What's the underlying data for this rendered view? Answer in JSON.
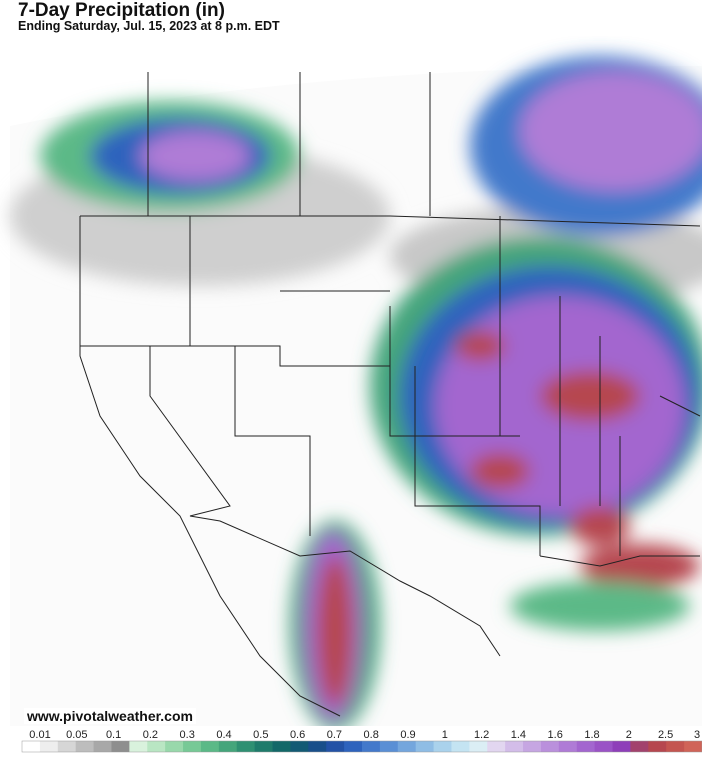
{
  "header": {
    "title": "7-Day Precipitation (in)",
    "subtitle": "Ending Saturday, Jul. 15, 2023 at 8 p.m. EDT"
  },
  "watermark": "www.pivotalweather.com",
  "legend": {
    "labels": [
      "0.01",
      "0.05",
      "0.1",
      "0.2",
      "0.3",
      "0.4",
      "0.5",
      "0.6",
      "0.7",
      "0.8",
      "0.9",
      "1",
      "1.2",
      "1.4",
      "1.6",
      "1.8",
      "2",
      "2.5",
      "3"
    ],
    "colors": [
      "#ffffff",
      "#eeeeee",
      "#d6d6d6",
      "#bdbdbd",
      "#a8a8a8",
      "#8e8e8e",
      "#d9f2dd",
      "#b9e6c3",
      "#98d8ab",
      "#77c996",
      "#5bb987",
      "#45a57b",
      "#2f9072",
      "#1f7b6b",
      "#136868",
      "#135a74",
      "#194f8a",
      "#2352a6",
      "#2e63bd",
      "#4379cb",
      "#5a8fd5",
      "#74a6dd",
      "#8fbde5",
      "#aad2ec",
      "#c4e4f2",
      "#dbeef5",
      "#e2d6f0",
      "#d3bde9",
      "#c6a6e2",
      "#ba90dc",
      "#af7bd6",
      "#a366cf",
      "#9a53c6",
      "#8e3fb9",
      "#a2426d",
      "#b6474f",
      "#c45550",
      "#d06458"
    ]
  }
}
